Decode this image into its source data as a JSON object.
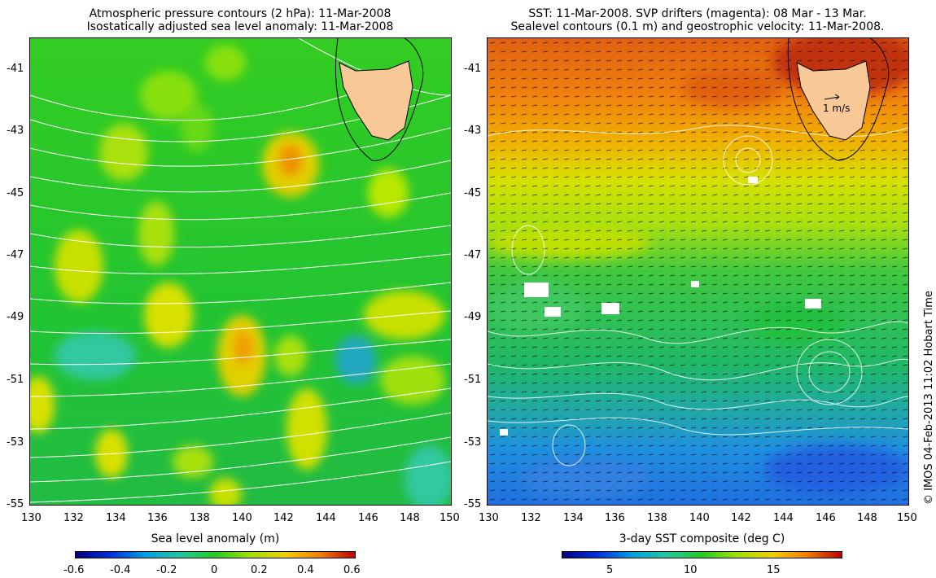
{
  "left_panel": {
    "title_line1": "Atmospheric pressure contours (2 hPa): 11-Mar-2008",
    "title_line2": "Isostatically adjusted sea level anomaly: 11-Mar-2008",
    "y_ticks": [
      "-41",
      "-43",
      "-45",
      "-47",
      "-49",
      "-51",
      "-53",
      "-55"
    ],
    "x_ticks": [
      "130",
      "132",
      "134",
      "136",
      "138",
      "140",
      "142",
      "144",
      "146",
      "148",
      "150"
    ],
    "colorbar": {
      "title": "Sea level anomaly (m)",
      "ticks": [
        "-0.6",
        "-0.4",
        "-0.2",
        "0",
        "0.2",
        "0.4",
        "0.6"
      ],
      "range": [
        -0.6,
        0.6
      ]
    },
    "colors": {
      "background": "#22cc22",
      "contour": "#ffffff",
      "land": "#f8c896"
    }
  },
  "right_panel": {
    "title_line1": "SST: 11-Mar-2008. SVP drifters (magenta): 08 Mar - 13 Mar.",
    "title_line2": "Sealevel contours (0.1 m) and geostrophic velocity: 11-Mar-2008.",
    "y_ticks": [
      "-41",
      "-43",
      "-45",
      "-47",
      "-49",
      "-51",
      "-53",
      "-55"
    ],
    "x_ticks": [
      "130",
      "132",
      "134",
      "136",
      "138",
      "140",
      "142",
      "144",
      "146",
      "148",
      "150"
    ],
    "scale_label": "1 m/s",
    "colorbar": {
      "title": "3-day SST composite (deg C)",
      "ticks": [
        "5",
        "10",
        "15"
      ],
      "range": [
        2,
        20
      ]
    },
    "colors": {
      "warm": "#e07010",
      "cool": "#2070e0",
      "vector": "#000000",
      "land": "#f8c896"
    }
  },
  "credit": "© IMOS 04-Feb-2013 11:02 Hobart Time"
}
